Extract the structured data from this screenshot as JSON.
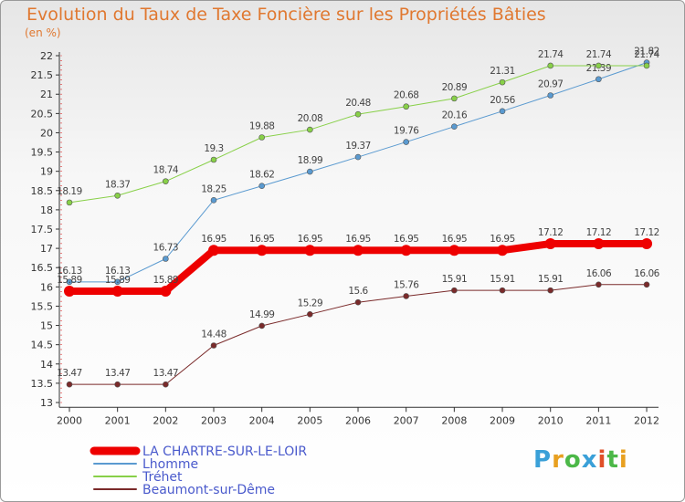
{
  "header": {
    "title": "Evolution du Taux de Taxe Foncière sur les Propriétés Bâties",
    "unit": "(en %)"
  },
  "logo": {
    "parts": [
      "P",
      "r",
      "o",
      "x",
      "i",
      "t",
      "i"
    ],
    "colors": [
      "#3aa0d8",
      "#e8a020",
      "#4cb848",
      "#3aa0d8",
      "#e05028",
      "#4cb848",
      "#e8a020"
    ]
  },
  "chart_data": {
    "type": "line",
    "title": "Evolution du Taux de Taxe Foncière sur les Propriétés Bâties",
    "ylabel": "(en %)",
    "xlabel": "",
    "ylim": [
      12.875,
      22
    ],
    "yticks": [
      "13",
      "13.5",
      "14",
      "14.5",
      "15",
      "15.5",
      "16",
      "16.5",
      "17",
      "17.5",
      "18",
      "18.5",
      "19",
      "19.5",
      "20",
      "20.5",
      "21",
      "21.5",
      "22"
    ],
    "categories": [
      "2000",
      "2001",
      "2002",
      "2003",
      "2004",
      "2005",
      "2006",
      "2007",
      "2008",
      "2009",
      "2010",
      "2011",
      "2012"
    ],
    "grid": false,
    "series": [
      {
        "name": "Beaumont-sur-Dême",
        "color": "#7a2a2a",
        "width": 1,
        "values": [
          13.47,
          13.47,
          13.47,
          14.48,
          14.99,
          15.29,
          15.6,
          15.76,
          15.91,
          15.91,
          15.91,
          16.06,
          16.06
        ],
        "labels": [
          "13.47",
          "13.47",
          "13.47",
          "14.48",
          "14.99",
          "15.29",
          "15.6",
          "15.76",
          "15.91",
          "15.91",
          "15.91",
          "16.06",
          "16.06"
        ]
      },
      {
        "name": "Lhomme",
        "color": "#5a9ad0",
        "width": 1,
        "values": [
          16.13,
          16.13,
          16.73,
          18.25,
          18.62,
          18.99,
          19.37,
          19.76,
          20.16,
          20.56,
          20.97,
          21.39,
          21.82
        ],
        "labels": [
          "16.13",
          "16.13",
          "16.73",
          "18.25",
          "18.62",
          "18.99",
          "19.37",
          "19.76",
          "20.16",
          "20.56",
          "20.97",
          "21.39",
          "21.82"
        ]
      },
      {
        "name": "Tréhet",
        "color": "#88d048",
        "width": 1,
        "values": [
          18.19,
          18.37,
          18.74,
          19.3,
          19.88,
          20.08,
          20.48,
          20.68,
          20.89,
          21.31,
          21.74,
          21.74,
          21.74
        ],
        "labels": [
          "18.19",
          "18.37",
          "18.74",
          "19.3",
          "19.88",
          "20.08",
          "20.48",
          "20.68",
          "20.89",
          "21.31",
          "21.74",
          "21.74",
          "21.74"
        ]
      },
      {
        "name": "LA CHARTRE-SUR-LE-LOIR",
        "color": "#ee0000",
        "width": 8,
        "values": [
          15.89,
          15.89,
          15.89,
          16.95,
          16.95,
          16.95,
          16.95,
          16.95,
          16.95,
          16.95,
          17.12,
          17.12,
          17.12
        ],
        "labels": [
          "15.89",
          "15.89",
          "15.89",
          "16.95",
          "16.95",
          "16.95",
          "16.95",
          "16.95",
          "16.95",
          "16.95",
          "17.12",
          "17.12",
          "17.12"
        ]
      }
    ],
    "legend": [
      "LA CHARTRE-SUR-LE-LOIR",
      "Lhomme",
      "Tréhet",
      "Beaumont-sur-Dême"
    ],
    "legend_position": "bottom-left"
  }
}
